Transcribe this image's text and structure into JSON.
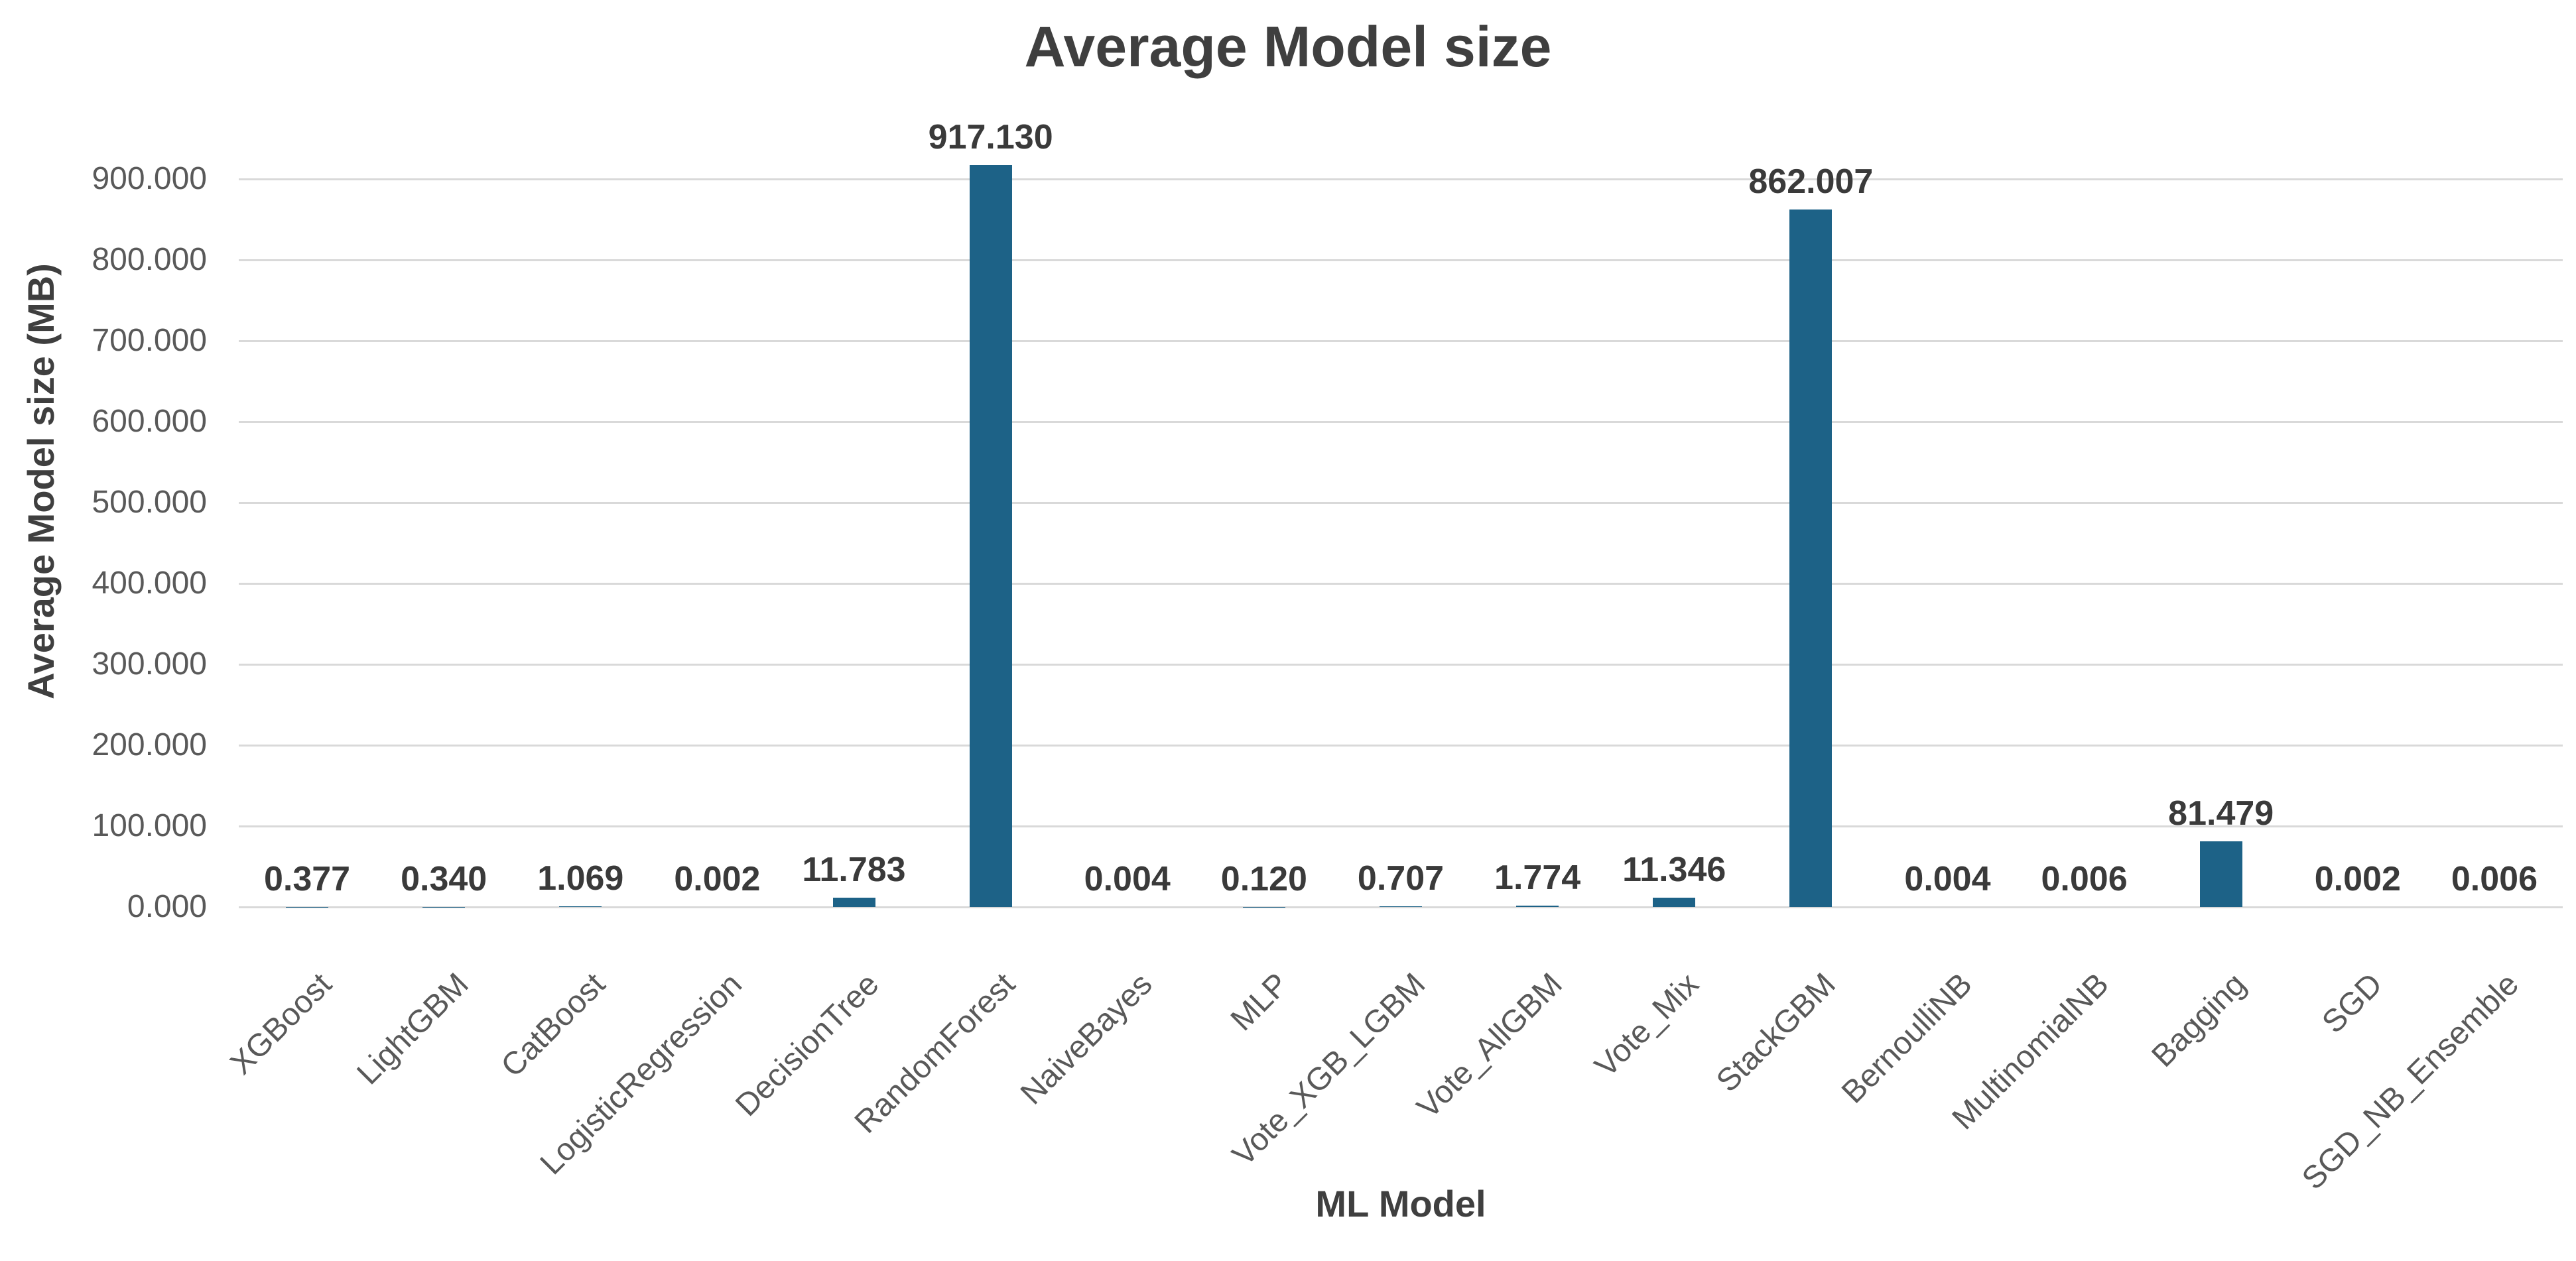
{
  "chart_data": {
    "type": "bar",
    "title": "Average Model size",
    "xlabel": "ML Model",
    "ylabel": "Average Model size (MB)",
    "categories": [
      "XGBoost",
      "LightGBM",
      "CatBoost",
      "LogisticRegression",
      "DecisionTree",
      "RandomForest",
      "NaiveBayes",
      "MLP",
      "Vote_XGB_LGBM",
      "Vote_AllGBM",
      "Vote_Mix",
      "StackGBM",
      "BernoulliNB",
      "MultinomialNB",
      "Bagging",
      "SGD",
      "SGD_NB_Ensemble"
    ],
    "values": [
      0.377,
      0.34,
      1.069,
      0.002,
      11.783,
      917.13,
      0.004,
      0.12,
      0.707,
      1.774,
      11.346,
      862.007,
      0.004,
      0.006,
      81.479,
      0.002,
      0.006
    ],
    "value_labels": [
      "0.377",
      "0.340",
      "1.069",
      "0.002",
      "11.783",
      "917.130",
      "0.004",
      "0.120",
      "0.707",
      "1.774",
      "11.346",
      "862.007",
      "0.004",
      "0.006",
      "81.479",
      "0.002",
      "0.006"
    ],
    "y_ticks": [
      0,
      100,
      200,
      300,
      400,
      500,
      600,
      700,
      800,
      900
    ],
    "y_tick_labels": [
      "0.000",
      "100.000",
      "200.000",
      "300.000",
      "400.000",
      "500.000",
      "600.000",
      "700.000",
      "800.000",
      "900.000"
    ],
    "ylim": [
      0,
      950
    ],
    "grid": true,
    "legend_position": "none",
    "colors": {
      "bar": "#1D6287",
      "gridline": "#D9D9D9",
      "title": "#3F3F3F",
      "tick_label": "#595959",
      "data_label": "#3A3A3A",
      "background": "#FFFFFF"
    }
  }
}
